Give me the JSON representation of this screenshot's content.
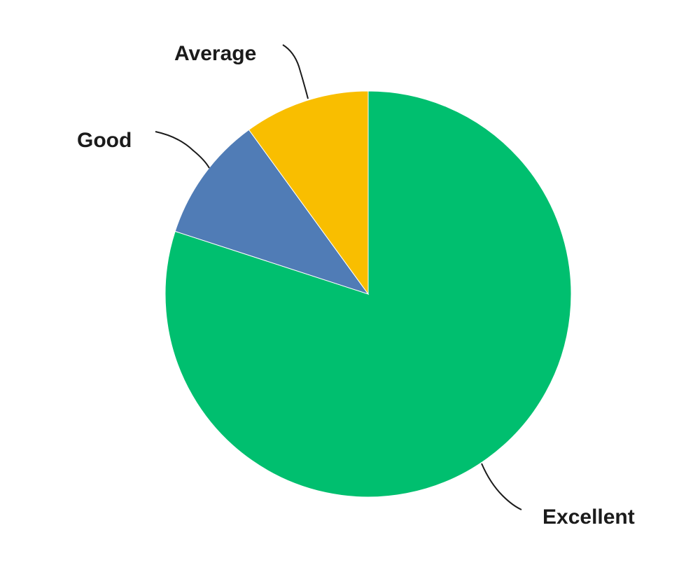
{
  "chart_data": {
    "type": "pie",
    "title": "",
    "slices": [
      {
        "label": "Excellent",
        "value": 80,
        "color": "#00BF6F"
      },
      {
        "label": "Good",
        "value": 10,
        "color": "#507CB6"
      },
      {
        "label": "Average",
        "value": 10,
        "color": "#F9BE00"
      }
    ],
    "start": "12 o'clock",
    "direction": "clockwise",
    "legend": "none",
    "labels": "outside with leader lines"
  }
}
